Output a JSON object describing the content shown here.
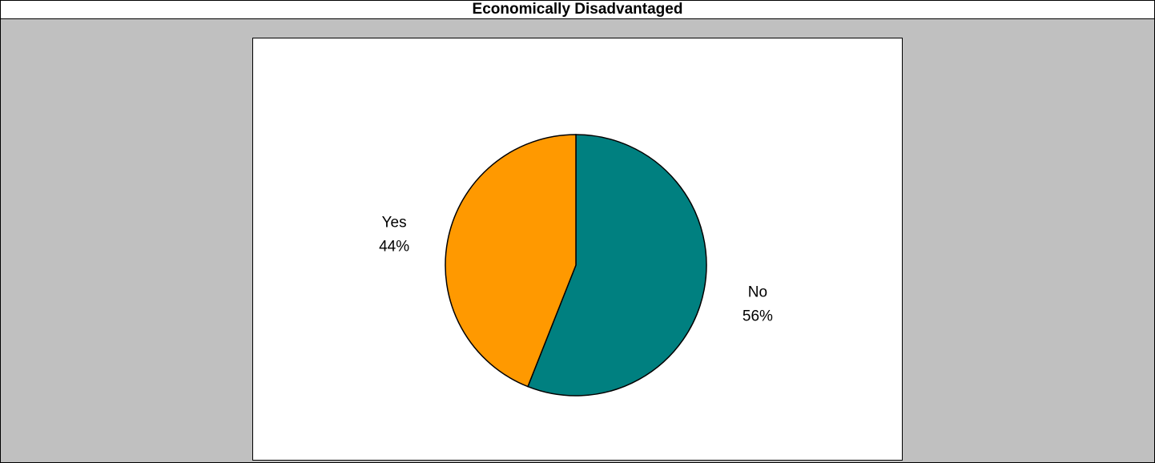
{
  "header": {
    "title": "Economically Disadvantaged"
  },
  "chart_data": {
    "type": "pie",
    "title": "Economically Disadvantaged",
    "slices": [
      {
        "name": "No",
        "label": "No",
        "pct_label": "56%",
        "value": 56,
        "color": "#008080"
      },
      {
        "name": "Yes",
        "label": "Yes",
        "pct_label": "44%",
        "value": 44,
        "color": "#FF9900"
      }
    ],
    "start_angle_deg": 0,
    "direction": "clockwise"
  }
}
